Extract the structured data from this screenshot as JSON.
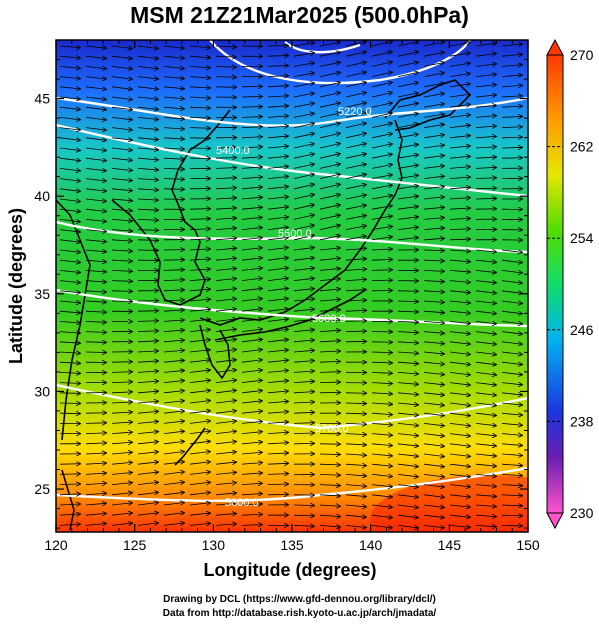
{
  "title": "MSM 21Z21Mar2025 (500.0hPa)",
  "xaxis": {
    "label": "Longitude (degrees)",
    "ticks": [
      120,
      125,
      130,
      135,
      140,
      145,
      150
    ],
    "range": [
      120,
      150
    ]
  },
  "yaxis": {
    "label": "Latitude  (degrees)",
    "ticks": [
      25,
      30,
      35,
      40,
      45
    ],
    "range": [
      22.8,
      48
    ]
  },
  "colorbar": {
    "labels": [
      270,
      262,
      254,
      246,
      238,
      230
    ],
    "range": [
      230,
      270
    ],
    "colors": [
      "#ff55cc",
      "#3a1ea8",
      "#1c49ff",
      "#00b4f0",
      "#1ee6a0",
      "#22cc22",
      "#88dd00",
      "#e6e600",
      "#ff9a00",
      "#ff3a00"
    ]
  },
  "contours": [
    {
      "label": "5220.0",
      "lat_at_140": 45.7
    },
    {
      "label": "5400.0",
      "lat_at_140": 41.3
    },
    {
      "label": "5500.0",
      "lat_at_140": 37.6
    },
    {
      "label": "5600.0",
      "lat_at_140": 34.3
    },
    {
      "label": "5700.0",
      "lat_at_140": 28.7
    },
    {
      "label": "5800.0",
      "lat_at_140": 25.0
    }
  ],
  "credits": {
    "line1": "Drawing by DCL (https://www.gfd-dennou.org/library/dcl/)",
    "line2": "Data from http://database.rish.kyoto-u.ac.jp/arch/jmadata/"
  }
}
